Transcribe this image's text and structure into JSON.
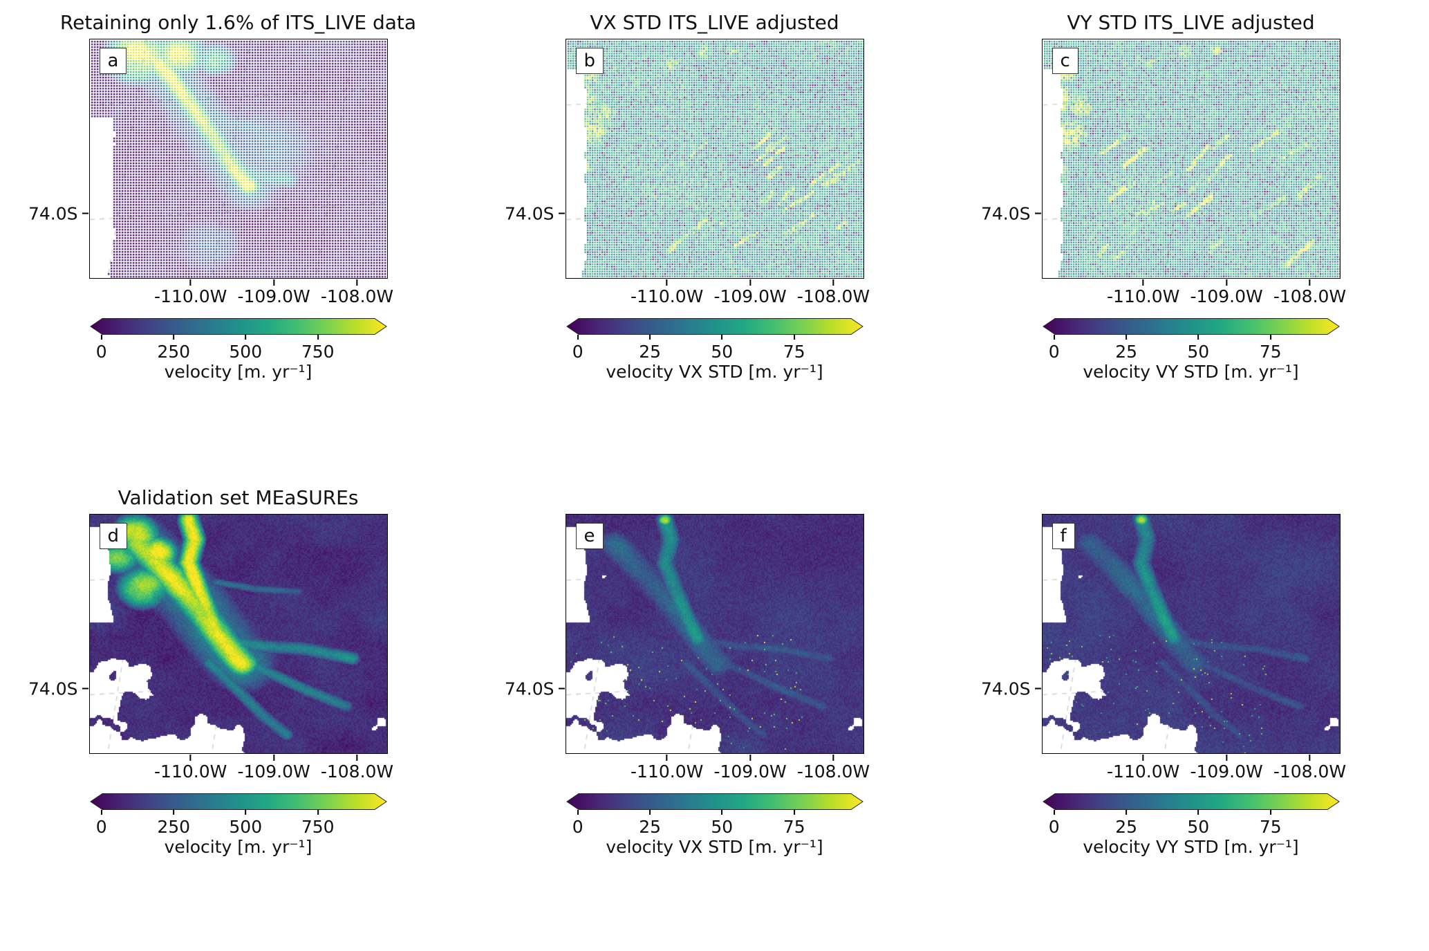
{
  "figure": {
    "background": "#ffffff",
    "grid_color": "#cfcfcf",
    "axis_color": "#000000",
    "viridis": [
      "#440154",
      "#482475",
      "#414487",
      "#355f8d",
      "#2a788e",
      "#21918c",
      "#22a884",
      "#44bf70",
      "#7ad151",
      "#bddf26",
      "#fde725"
    ]
  },
  "panels": [
    {
      "letter": "a",
      "title": "Retaining only 1.6% of ITS_LIVE data",
      "x_ticks": [
        "-110.0W",
        "-109.0W",
        "-108.0W"
      ],
      "y_tick": "74.0S",
      "colorbar": {
        "ticks": [
          "0",
          "250",
          "500",
          "750"
        ],
        "label": "velocity [m. yr⁻¹]"
      }
    },
    {
      "letter": "b",
      "title": "VX STD ITS_LIVE adjusted",
      "x_ticks": [
        "-110.0W",
        "-109.0W",
        "-108.0W"
      ],
      "y_tick": "74.0S",
      "colorbar": {
        "ticks": [
          "0",
          "25",
          "50",
          "75"
        ],
        "label": "velocity VX STD [m. yr⁻¹]"
      }
    },
    {
      "letter": "c",
      "title": "VY STD ITS_LIVE adjusted",
      "x_ticks": [
        "-110.0W",
        "-109.0W",
        "-108.0W"
      ],
      "y_tick": "74.0S",
      "colorbar": {
        "ticks": [
          "0",
          "25",
          "50",
          "75"
        ],
        "label": "velocity VY STD [m. yr⁻¹]"
      }
    },
    {
      "letter": "d",
      "title": "Validation set MEaSUREs",
      "x_ticks": [
        "-110.0W",
        "-109.0W",
        "-108.0W"
      ],
      "y_tick": "74.0S",
      "colorbar": {
        "ticks": [
          "0",
          "250",
          "500",
          "750"
        ],
        "label": "velocity [m. yr⁻¹]"
      }
    },
    {
      "letter": "e",
      "title": "",
      "x_ticks": [
        "-110.0W",
        "-109.0W",
        "-108.0W"
      ],
      "y_tick": "74.0S",
      "colorbar": {
        "ticks": [
          "0",
          "25",
          "50",
          "75"
        ],
        "label": "velocity VX STD [m. yr⁻¹]"
      }
    },
    {
      "letter": "f",
      "title": "",
      "x_ticks": [
        "-110.0W",
        "-109.0W",
        "-108.0W"
      ],
      "y_tick": "74.0S",
      "colorbar": {
        "ticks": [
          "0",
          "25",
          "50",
          "75"
        ],
        "label": "velocity VY STD [m. yr⁻¹]"
      }
    }
  ],
  "chart_data": [
    {
      "type": "heatmap",
      "panel": "a",
      "title": "Retaining only 1.6% of ITS_LIVE data",
      "x_tick_labels": [
        "-110.0W",
        "-109.0W",
        "-108.0W"
      ],
      "y_tick_labels": [
        "74.0S"
      ],
      "colormap": "viridis",
      "colorbar_label": "velocity [m. yr⁻¹]",
      "colorbar_ticks": [
        0,
        250,
        500,
        750
      ],
      "value_range": [
        0,
        950
      ],
      "extend": "both",
      "grid": "dashed",
      "notes": "Sparse dotted scatter of ITS_LIVE ice velocity; bright yellow fast-flow glacier trunk running from the upper left diagonally to the center, dark purple slow background, white no-data strip along lower-left edge."
    },
    {
      "type": "heatmap",
      "panel": "b",
      "title": "VX STD ITS_LIVE adjusted",
      "x_tick_labels": [
        "-110.0W",
        "-109.0W",
        "-108.0W"
      ],
      "y_tick_labels": [
        "74.0S"
      ],
      "colormap": "viridis",
      "colorbar_label": "velocity VX STD [m. yr⁻¹]",
      "colorbar_ticks": [
        0,
        25,
        50,
        75
      ],
      "value_range": [
        0,
        95
      ],
      "extend": "both",
      "grid": "dashed",
      "notes": "Mostly mid-range teal/green VX standard deviation speckle with high yellow values clustered along the left margin and scattered yellow streaks in the lower half; white no-data strip on the left edge."
    },
    {
      "type": "heatmap",
      "panel": "c",
      "title": "VY STD ITS_LIVE adjusted",
      "x_tick_labels": [
        "-110.0W",
        "-109.0W",
        "-108.0W"
      ],
      "y_tick_labels": [
        "74.0S"
      ],
      "colormap": "viridis",
      "colorbar_label": "velocity VY STD [m. yr⁻¹]",
      "colorbar_ticks": [
        0,
        25,
        50,
        75
      ],
      "value_range": [
        0,
        95
      ],
      "extend": "both",
      "grid": "dashed",
      "notes": "Same pattern as panel b for the VY component: teal/green speckle, yellow clusters on the left edge and diagonal yellow streaks lower right."
    },
    {
      "type": "heatmap",
      "panel": "d",
      "title": "Validation set MEaSUREs",
      "x_tick_labels": [
        "-110.0W",
        "-109.0W",
        "-108.0W"
      ],
      "y_tick_labels": [
        "74.0S"
      ],
      "colormap": "viridis",
      "colorbar_label": "velocity [m. yr⁻¹]",
      "colorbar_ticks": [
        0,
        250,
        500,
        750
      ],
      "value_range": [
        0,
        950
      ],
      "extend": "both",
      "grid": "dashed",
      "notes": "Dense MEaSUREs velocity mosaic: bright yellow/green glacier trunk and tributaries fanning from top-center toward lower right, dark purple slow ice, many ragged white no-data patches across the lower-left half."
    },
    {
      "type": "heatmap",
      "panel": "e",
      "title": "",
      "x_tick_labels": [
        "-110.0W",
        "-109.0W",
        "-108.0W"
      ],
      "y_tick_labels": [
        "74.0S"
      ],
      "colormap": "viridis",
      "colorbar_label": "velocity VX STD [m. yr⁻¹]",
      "colorbar_ticks": [
        0,
        25,
        50,
        75
      ],
      "value_range": [
        0,
        95
      ],
      "extend": "both",
      "grid": "dashed",
      "notes": "VX standard deviation of the validation set: low dark-blue/purple values overall, faint teal along the glacier trunk, sparse bright speckles in the lower left, same white no-data mask as panel d."
    },
    {
      "type": "heatmap",
      "panel": "f",
      "title": "",
      "x_tick_labels": [
        "-110.0W",
        "-109.0W",
        "-108.0W"
      ],
      "y_tick_labels": [
        "74.0S"
      ],
      "colormap": "viridis",
      "colorbar_label": "velocity VY STD [m. yr⁻¹]",
      "colorbar_ticks": [
        0,
        25,
        50,
        75
      ],
      "value_range": [
        0,
        95
      ],
      "extend": "both",
      "grid": "dashed",
      "notes": "VY standard deviation of the validation set: same structure as panel e with low dark values, faint teal trunk and sparse bright speckles lower left."
    }
  ]
}
